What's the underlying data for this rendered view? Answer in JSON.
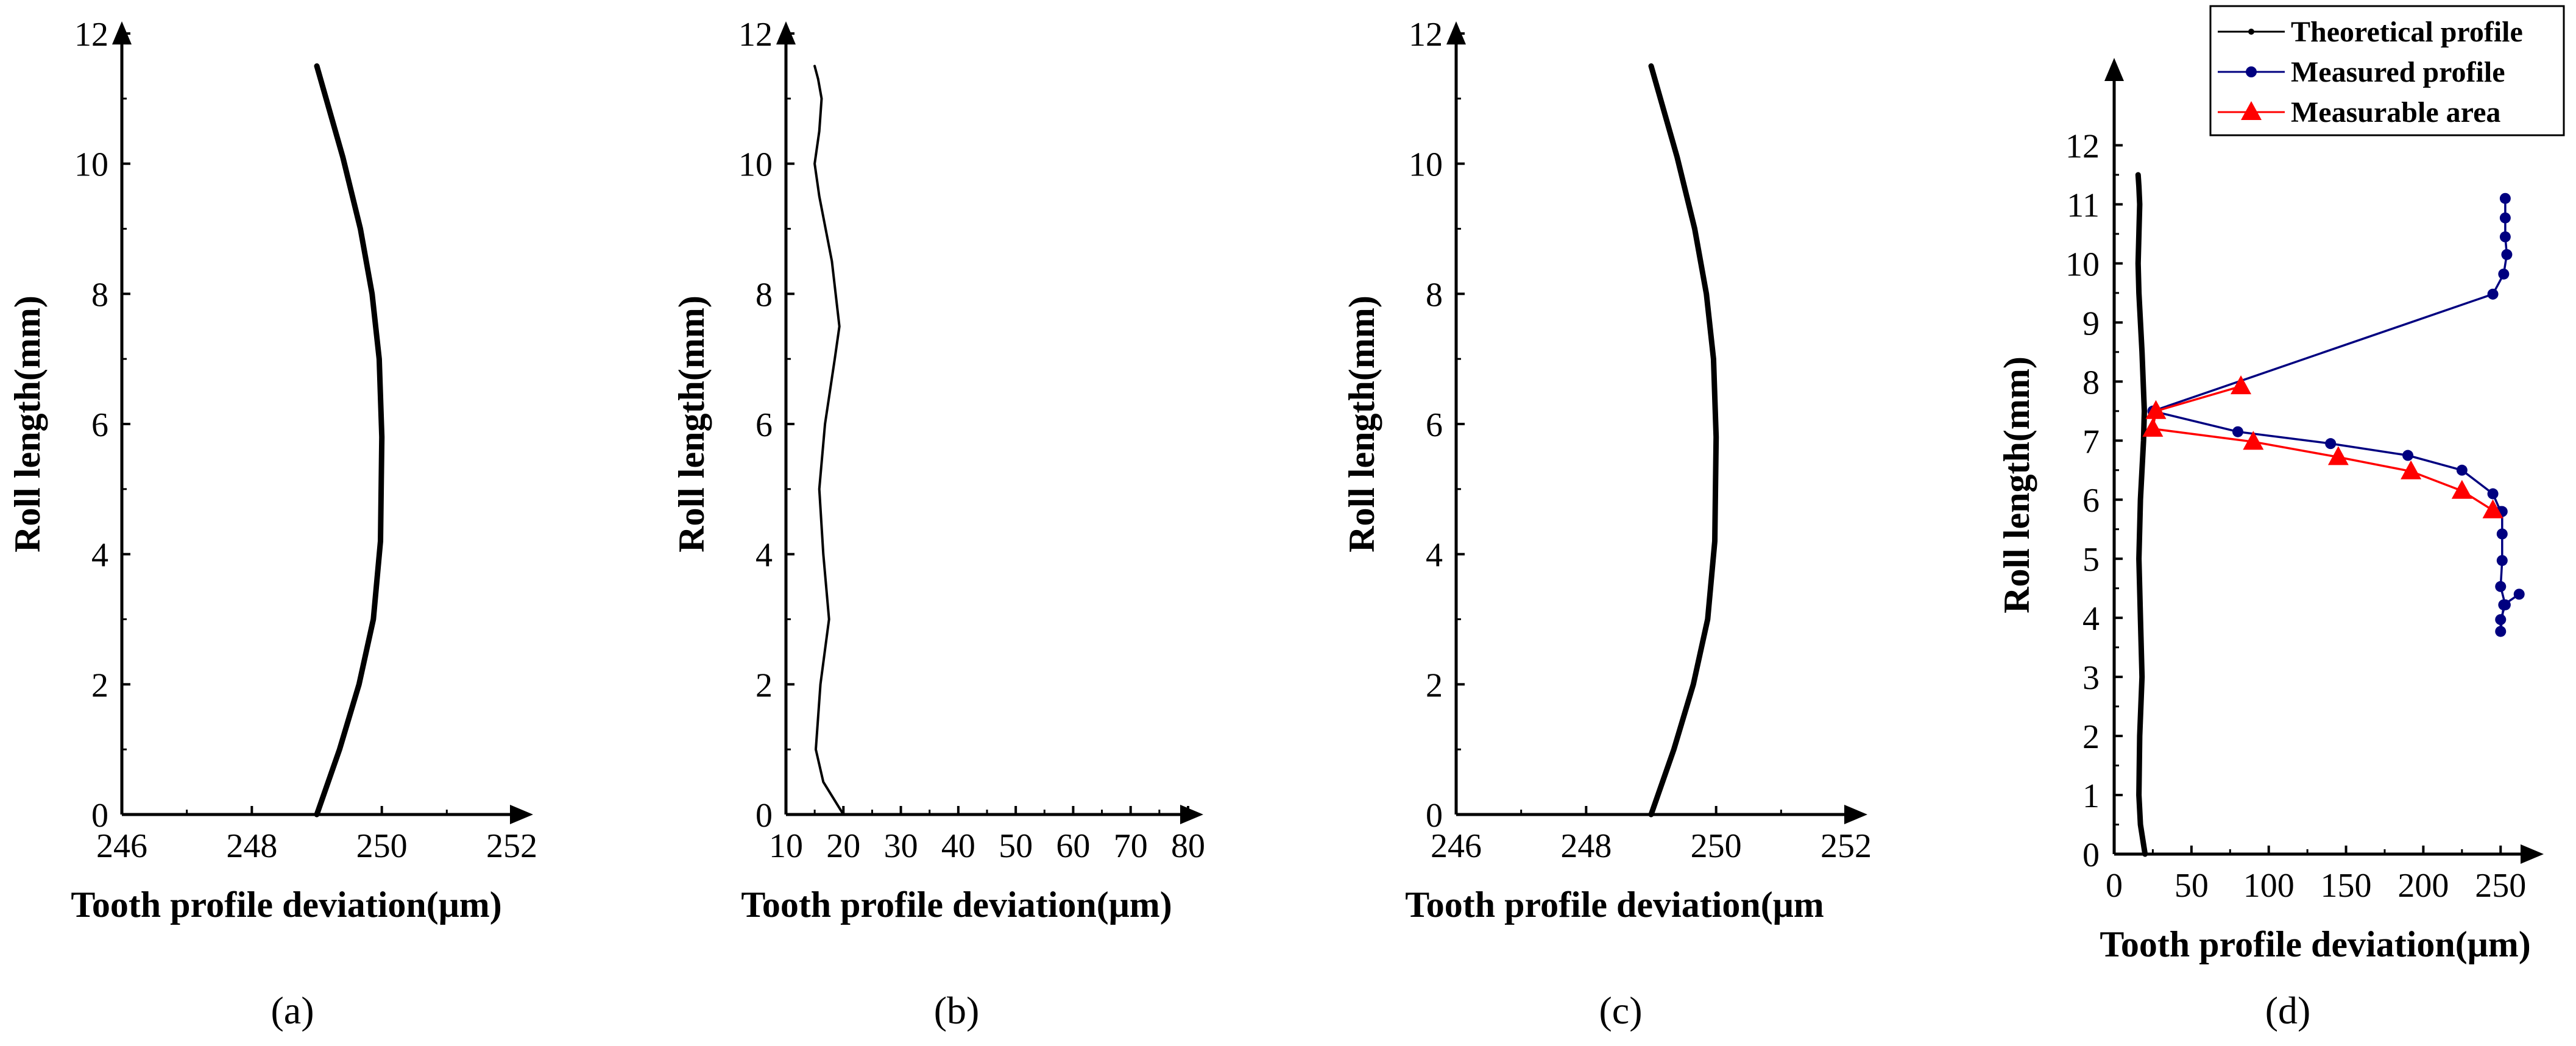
{
  "chart_data": [
    {
      "panel_label": "(a)",
      "type": "line",
      "xlabel": "Tooth profile deviation(μm)",
      "ylabel": "Roll length(mm)",
      "xlim": [
        246,
        252
      ],
      "ylim": [
        0,
        12
      ],
      "xticks": [
        246,
        248,
        250,
        252
      ],
      "yticks": [
        0,
        2,
        4,
        6,
        8,
        10,
        12
      ],
      "grid": false,
      "series": [
        {
          "style": "thick-black",
          "x": [
            249.0,
            249.35,
            249.65,
            249.87,
            249.98,
            250.0,
            249.96,
            249.85,
            249.67,
            249.4,
            249.0
          ],
          "y": [
            0,
            1,
            2,
            3,
            4.2,
            5.8,
            7,
            8,
            9,
            10.1,
            11.5
          ]
        }
      ]
    },
    {
      "panel_label": "(b)",
      "type": "line",
      "xlabel": "Tooth profile deviation(μm)",
      "ylabel": "Roll length(mm)",
      "xlim": [
        10,
        80
      ],
      "ylim": [
        0,
        12
      ],
      "xticks": [
        10,
        20,
        30,
        40,
        50,
        60,
        70,
        80
      ],
      "yticks": [
        0,
        2,
        4,
        6,
        8,
        10,
        12
      ],
      "grid": false,
      "series": [
        {
          "style": "thin-black",
          "x": [
            20.0,
            16.5,
            15.2,
            16.0,
            17.5,
            16.5,
            15.8,
            16.8,
            18.5,
            19.3,
            18.0,
            15.8,
            15.0,
            15.8,
            16.2,
            15.6,
            15.0
          ],
          "y": [
            0,
            0.5,
            1.0,
            2.0,
            3.0,
            4.0,
            5.0,
            6.0,
            7.0,
            7.5,
            8.5,
            9.5,
            10.0,
            10.5,
            11.0,
            11.3,
            11.5
          ]
        }
      ]
    },
    {
      "panel_label": "(c)",
      "type": "line",
      "xlabel": "Tooth profile deviation(μm",
      "ylabel": "Roll length(mm)",
      "xlim": [
        246,
        252
      ],
      "ylim": [
        0,
        12
      ],
      "xticks": [
        246,
        248,
        250,
        252
      ],
      "yticks": [
        0,
        2,
        4,
        6,
        8,
        10,
        12
      ],
      "grid": false,
      "series": [
        {
          "style": "thick-black",
          "x": [
            249.0,
            249.35,
            249.65,
            249.87,
            249.98,
            250.0,
            249.96,
            249.85,
            249.67,
            249.4,
            249.0
          ],
          "y": [
            0,
            1,
            2,
            3,
            4.2,
            5.8,
            7,
            8,
            9,
            10.1,
            11.5
          ]
        }
      ]
    },
    {
      "panel_label": "(d)",
      "type": "line",
      "xlabel": "Tooth profile deviation(μm)",
      "ylabel": "Roll length(mm)",
      "xlim": [
        0,
        270
      ],
      "ylim": [
        0,
        12.5
      ],
      "xticks": [
        0,
        50,
        100,
        150,
        200,
        250
      ],
      "yticks": [
        0,
        1,
        2,
        3,
        4,
        5,
        6,
        7,
        8,
        9,
        10,
        11,
        12
      ],
      "grid": false,
      "legend": "top-right",
      "series": [
        {
          "name": "Theoretical profile",
          "style": "thick-black",
          "color": "#000000",
          "x": [
            20,
            17,
            16,
            16.5,
            18,
            17,
            16,
            17,
            19,
            19.5,
            18,
            16,
            15.5,
            16,
            16.5,
            16,
            15.5
          ],
          "y": [
            0,
            0.5,
            1.0,
            2.0,
            3.0,
            4.0,
            5.0,
            6.0,
            7.0,
            7.5,
            8.5,
            9.5,
            10.0,
            10.5,
            11.0,
            11.3,
            11.5
          ]
        },
        {
          "name": "Measured profile",
          "style": "line-circle",
          "color": "#000080",
          "x": [
            262,
            252,
            250,
            250,
            253,
            250,
            251,
            251,
            251,
            250,
            245,
            225,
            190,
            140,
            80,
            25,
            245,
            252,
            254,
            253,
            253,
            253
          ],
          "y": [
            4.4,
            4.22,
            3.77,
            3.97,
            4.22,
            4.53,
            4.97,
            5.42,
            5.8,
            5.8,
            6.1,
            6.5,
            6.75,
            6.95,
            7.15,
            7.5,
            9.48,
            9.82,
            10.15,
            10.45,
            10.77,
            11.1
          ]
        },
        {
          "name": "Measurable area",
          "style": "line-triangle",
          "color": "#ff0000",
          "x": [
            245,
            225,
            192,
            145,
            90,
            25,
            27,
            82
          ],
          "y": [
            5.82,
            6.15,
            6.48,
            6.72,
            6.98,
            7.2,
            7.5,
            7.92
          ]
        }
      ]
    }
  ]
}
